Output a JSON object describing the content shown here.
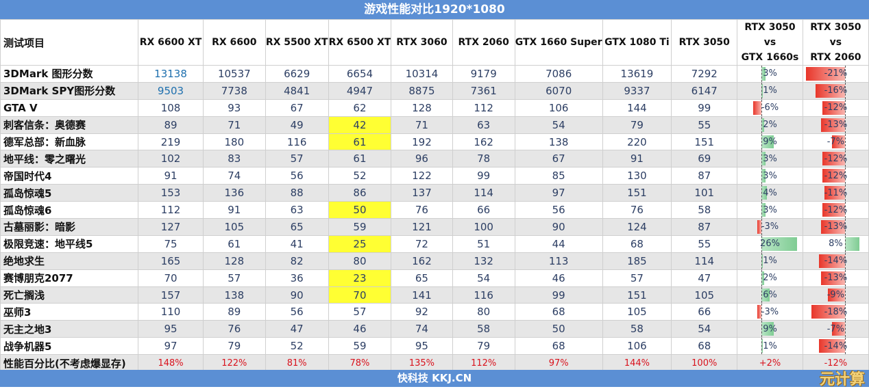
{
  "title": "游戏性能对比1920*1080",
  "footer": "快科技 KKJ.CN",
  "watermark": "元计算",
  "colors": {
    "header_bar": "#5b8fd4",
    "highlight": "#ffff33",
    "negative": "#e8362a",
    "positive": "#7fcc93",
    "percent_text": "#d9121c"
  },
  "chart_data": {
    "type": "table",
    "title": "游戏性能对比1920*1080",
    "first_header": "测试项目",
    "gpus": [
      "RX 6600 XT",
      "RX 6600",
      "RX 5500 XT",
      "RX 6500 XT",
      "RTX 3060",
      "RTX 2060",
      "GTX 1660 Super",
      "GTX 1080 Ti",
      "RTX 3050"
    ],
    "compare_headers": [
      [
        "RTX 3050",
        "vs",
        "GTX 1660s"
      ],
      [
        "RTX 3050",
        "vs",
        "RTX 2060"
      ]
    ],
    "rows": [
      {
        "name": "3DMark 图形分数",
        "values": [
          "13138",
          "10537",
          "6629",
          "6654",
          "10314",
          "9179",
          "7086",
          "13619",
          "7292"
        ],
        "vs1660": 3,
        "vs2060": -21,
        "highlight": []
      },
      {
        "name": "3DMark SPY图形分数",
        "values": [
          "9503",
          "7738",
          "4841",
          "4947",
          "8875",
          "7361",
          "6070",
          "9337",
          "6147"
        ],
        "vs1660": 1,
        "vs2060": -16,
        "highlight": []
      },
      {
        "name": "GTA V",
        "values": [
          "108",
          "93",
          "67",
          "62",
          "128",
          "112",
          "106",
          "144",
          "99"
        ],
        "vs1660": -6,
        "vs2060": -12,
        "highlight": []
      },
      {
        "name": "刺客信条：奥德赛",
        "values": [
          "89",
          "71",
          "49",
          "42",
          "71",
          "63",
          "54",
          "79",
          "55"
        ],
        "vs1660": 2,
        "vs2060": -13,
        "highlight": [
          3
        ]
      },
      {
        "name": "德军总部：新血脉",
        "values": [
          "219",
          "180",
          "116",
          "61",
          "192",
          "162",
          "138",
          "220",
          "151"
        ],
        "vs1660": 9,
        "vs2060": -7,
        "highlight": [
          3
        ]
      },
      {
        "name": "地平线：零之曙光",
        "values": [
          "102",
          "83",
          "57",
          "61",
          "96",
          "78",
          "67",
          "91",
          "69"
        ],
        "vs1660": 3,
        "vs2060": -12,
        "highlight": []
      },
      {
        "name": "帝国时代4",
        "values": [
          "91",
          "74",
          "56",
          "52",
          "122",
          "99",
          "85",
          "130",
          "87"
        ],
        "vs1660": 3,
        "vs2060": -12,
        "highlight": []
      },
      {
        "name": "孤岛惊魂5",
        "values": [
          "153",
          "136",
          "88",
          "86",
          "137",
          "114",
          "97",
          "151",
          "101"
        ],
        "vs1660": 4,
        "vs2060": -11,
        "highlight": []
      },
      {
        "name": "孤岛惊魂6",
        "values": [
          "112",
          "91",
          "63",
          "50",
          "76",
          "66",
          "56",
          "76",
          "58"
        ],
        "vs1660": 3,
        "vs2060": -12,
        "highlight": [
          3
        ]
      },
      {
        "name": "古墓丽影：暗影",
        "values": [
          "127",
          "105",
          "65",
          "59",
          "121",
          "100",
          "90",
          "124",
          "87"
        ],
        "vs1660": -3,
        "vs2060": -13,
        "highlight": []
      },
      {
        "name": "极限竞速：地平线5",
        "values": [
          "75",
          "61",
          "41",
          "25",
          "72",
          "51",
          "44",
          "68",
          "55"
        ],
        "vs1660": 26,
        "vs2060": 8,
        "highlight": [
          3
        ]
      },
      {
        "name": "绝地求生",
        "values": [
          "165",
          "128",
          "82",
          "80",
          "162",
          "132",
          "113",
          "185",
          "114"
        ],
        "vs1660": 1,
        "vs2060": -14,
        "highlight": []
      },
      {
        "name": "赛博朋克2077",
        "values": [
          "70",
          "57",
          "36",
          "23",
          "65",
          "54",
          "46",
          "57",
          "47"
        ],
        "vs1660": 2,
        "vs2060": -13,
        "highlight": [
          3
        ]
      },
      {
        "name": "死亡搁浅",
        "values": [
          "157",
          "138",
          "90",
          "70",
          "141",
          "116",
          "99",
          "151",
          "105"
        ],
        "vs1660": 6,
        "vs2060": -9,
        "highlight": [
          3
        ]
      },
      {
        "name": "巫师3",
        "values": [
          "110",
          "89",
          "56",
          "57",
          "92",
          "80",
          "68",
          "105",
          "66"
        ],
        "vs1660": -3,
        "vs2060": -18,
        "highlight": []
      },
      {
        "name": "无主之地3",
        "values": [
          "95",
          "76",
          "47",
          "46",
          "74",
          "58",
          "50",
          "58",
          "54"
        ],
        "vs1660": 9,
        "vs2060": -7,
        "highlight": []
      },
      {
        "name": "战争机器5",
        "values": [
          "97",
          "79",
          "52",
          "59",
          "95",
          "79",
          "68",
          "106",
          "68"
        ],
        "vs1660": 1,
        "vs2060": -14,
        "highlight": []
      }
    ],
    "percent_row": {
      "name": "性能百分比(不考虑爆显存)",
      "values": [
        "148%",
        "122%",
        "81%",
        "78%",
        "135%",
        "112%",
        "97%",
        "144%",
        "100%"
      ],
      "vs1660": "+2%",
      "vs2060": "-12%"
    }
  }
}
